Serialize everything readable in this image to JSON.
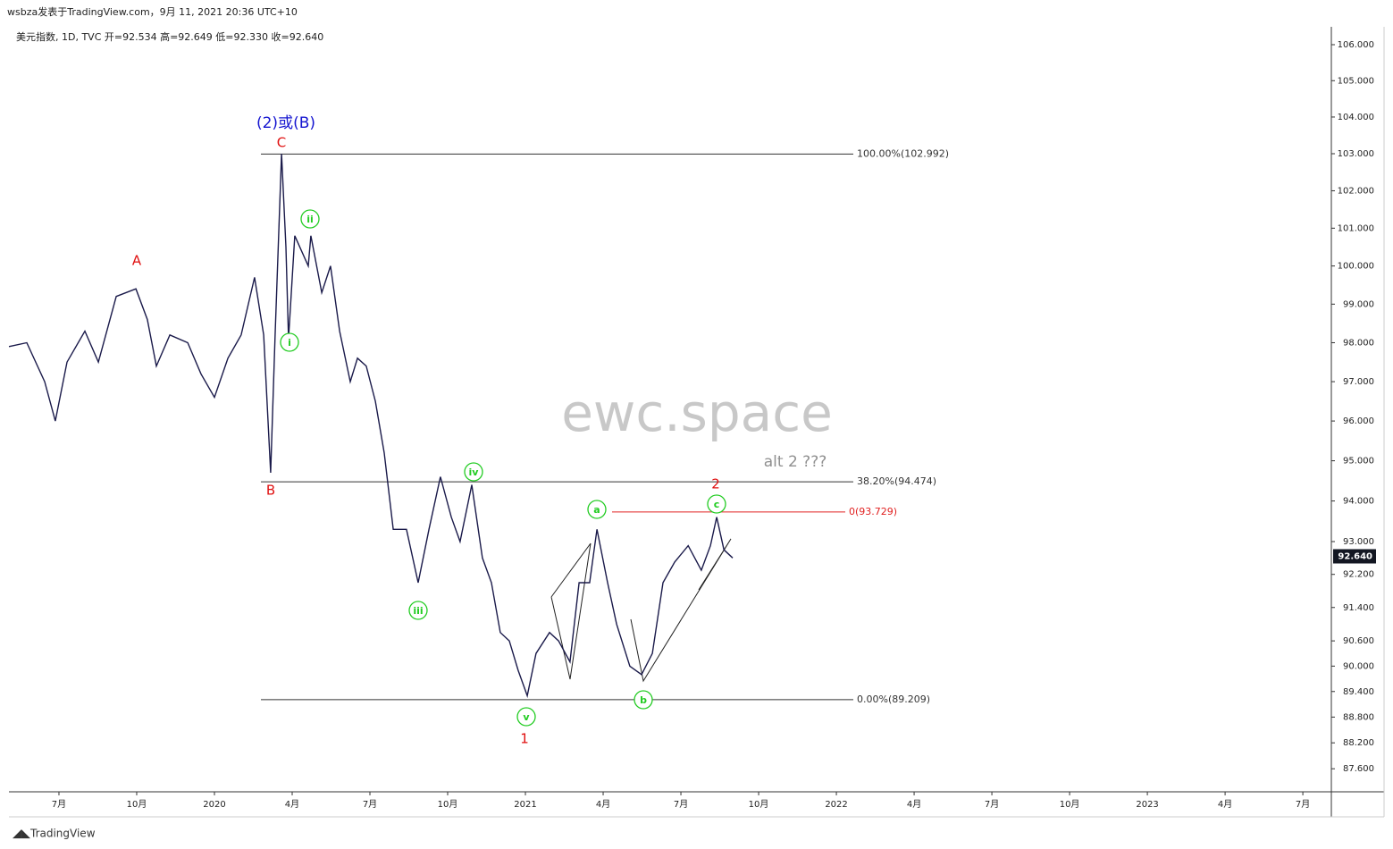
{
  "header": {
    "publisher": "wsbza发表于TradingView.com，9月 11, 2021 20:36 UTC+10",
    "symbol_info": "美元指数, 1D, TVC  开=92.534  高=92.649  低=92.330  收=92.640"
  },
  "watermark": "ewc.space",
  "footer": "TradingView",
  "chart_data": {
    "type": "line",
    "log_scale": true,
    "grid": false,
    "x": [
      -1.93,
      -1.24,
      -0.55,
      -0.14,
      0.31,
      1.0,
      1.52,
      2.21,
      2.97,
      3.41,
      3.76,
      4.28,
      4.97,
      5.48,
      6.0,
      6.52,
      7.03,
      7.55,
      7.9,
      8.17,
      8.34,
      8.59,
      8.76,
      8.86,
      9.1,
      9.62,
      9.72,
      10.14,
      10.48,
      10.83,
      11.24,
      11.52,
      11.86,
      12.21,
      12.55,
      12.9,
      13.41,
      13.86,
      14.28,
      14.72,
      15.14,
      15.48,
      15.93,
      16.34,
      16.69,
      17.03,
      17.38,
      17.72,
      18.07,
      18.41,
      18.93,
      19.28,
      19.72,
      20.07,
      20.48,
      20.76,
      21.17,
      21.52,
      22.03,
      22.48,
      22.9,
      23.31,
      23.76,
      24.28,
      24.79,
      25.14,
      25.38,
      25.66,
      26.0
    ],
    "series": [
      {
        "name": "美元指数",
        "color": "#1a1a4a",
        "values": [
          97.9,
          98.0,
          97.0,
          96.0,
          97.5,
          98.3,
          97.5,
          99.2,
          99.4,
          98.6,
          97.4,
          98.2,
          98.0,
          97.2,
          96.6,
          97.6,
          98.2,
          99.7,
          98.2,
          94.7,
          98.2,
          103.0,
          100.5,
          98.1,
          100.8,
          100.0,
          100.8,
          99.3,
          100.0,
          98.3,
          97.0,
          97.6,
          97.4,
          96.5,
          95.2,
          93.3,
          93.3,
          92.0,
          93.3,
          94.6,
          93.6,
          93.0,
          94.4,
          92.6,
          92.0,
          90.8,
          90.6,
          89.9,
          89.3,
          90.3,
          90.8,
          90.6,
          90.1,
          92.0,
          92.0,
          93.3,
          92.0,
          91.0,
          90.0,
          89.8,
          90.3,
          92.0,
          92.5,
          92.9,
          92.3,
          92.9,
          93.6,
          92.8,
          92.6
        ]
      }
    ],
    "xlim": [
      -1.93,
      49.1
    ],
    "xticks": [
      {
        "value": 0,
        "label": "7月"
      },
      {
        "value": 3,
        "label": "10月"
      },
      {
        "value": 6,
        "label": "2020"
      },
      {
        "value": 9,
        "label": "4月"
      },
      {
        "value": 12,
        "label": "7月"
      },
      {
        "value": 15,
        "label": "10月"
      },
      {
        "value": 18,
        "label": "2021"
      },
      {
        "value": 21,
        "label": "4月"
      },
      {
        "value": 24,
        "label": "7月"
      },
      {
        "value": 27,
        "label": "10月"
      },
      {
        "value": 30,
        "label": "2022"
      },
      {
        "value": 33,
        "label": "4月"
      },
      {
        "value": 36,
        "label": "7月"
      },
      {
        "value": 39,
        "label": "10月"
      },
      {
        "value": 42,
        "label": "2023"
      },
      {
        "value": 45,
        "label": "4月"
      },
      {
        "value": 48,
        "label": "7月"
      }
    ],
    "ylim": [
      87.07,
      106.5
    ],
    "yticks": [
      {
        "value": 106,
        "label": "106.000"
      },
      {
        "value": 105,
        "label": "105.000"
      },
      {
        "value": 104,
        "label": "104.000"
      },
      {
        "value": 103,
        "label": "103.000"
      },
      {
        "value": 102,
        "label": "102.000"
      },
      {
        "value": 101,
        "label": "101.000"
      },
      {
        "value": 100,
        "label": "100.000"
      },
      {
        "value": 99,
        "label": "99.000"
      },
      {
        "value": 98,
        "label": "98.000"
      },
      {
        "value": 97,
        "label": "97.000"
      },
      {
        "value": 96,
        "label": "96.000"
      },
      {
        "value": 95,
        "label": "95.000"
      },
      {
        "value": 94,
        "label": "94.000"
      },
      {
        "value": 93,
        "label": "93.000"
      },
      {
        "value": 92.2,
        "label": "92.200"
      },
      {
        "value": 91.4,
        "label": "91.400"
      },
      {
        "value": 90.6,
        "label": "90.600"
      },
      {
        "value": 90,
        "label": "90.000"
      },
      {
        "value": 89.4,
        "label": "89.400"
      },
      {
        "value": 88.8,
        "label": "88.800"
      },
      {
        "value": 88.2,
        "label": "88.200"
      },
      {
        "value": 87.6,
        "label": "87.600"
      }
    ],
    "last_price": {
      "value": 92.64,
      "label": "92.640"
    },
    "fib_levels": [
      {
        "value": 102.992,
        "label": "100.00%(102.992)",
        "color": "#333333"
      },
      {
        "value": 94.474,
        "label": "38.20%(94.474)",
        "color": "#333333"
      },
      {
        "value": 93.729,
        "label": "0(93.729)",
        "color": "#e02020"
      },
      {
        "value": 89.209,
        "label": "0.00%(89.209)",
        "color": "#333333"
      }
    ],
    "red_labels": [
      "A",
      "B",
      "C",
      "1",
      "2"
    ],
    "green_labels": [
      "i",
      "ii",
      "iii",
      "iv",
      "v",
      "a",
      "b",
      "c"
    ],
    "blue_label": "(2)或(B)",
    "note": "alt 2 ???"
  }
}
